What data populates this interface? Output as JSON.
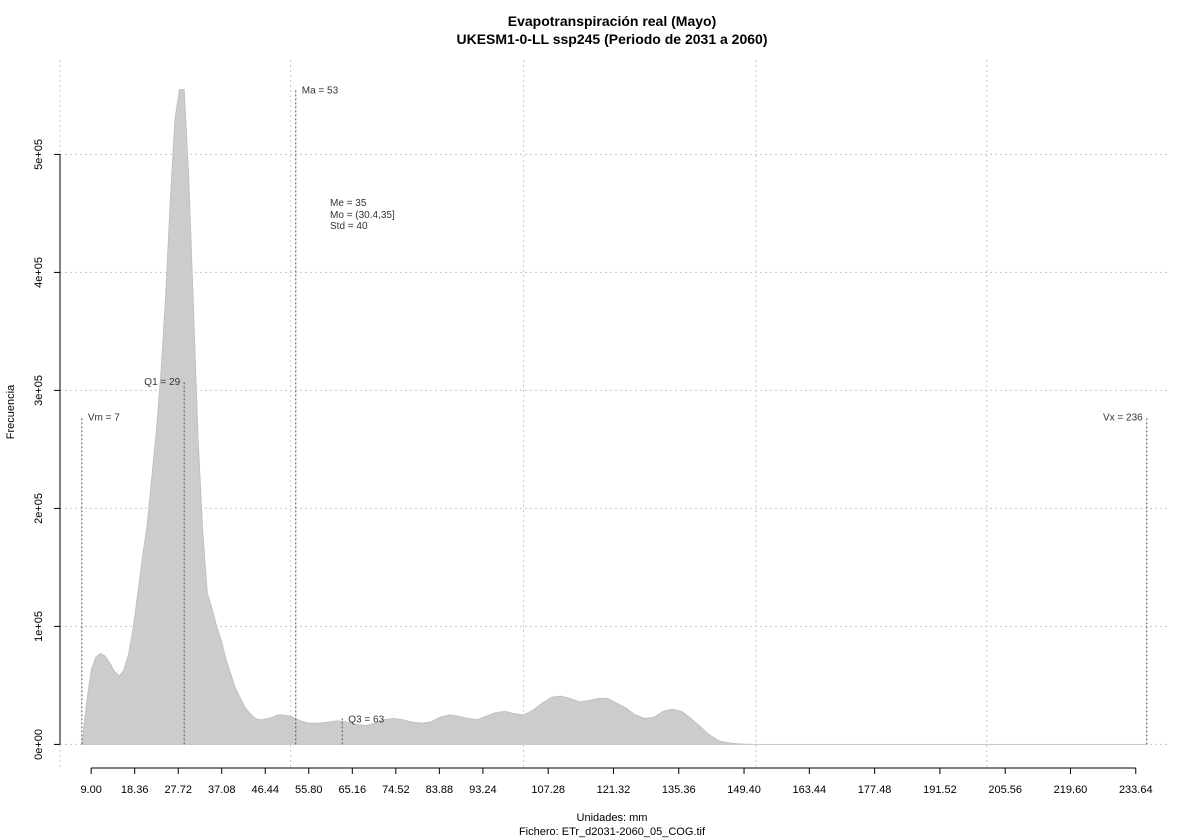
{
  "chart_data": {
    "type": "area",
    "title": "Evapotranspiración real (Mayo)",
    "subtitle": "UKESM1-0-LL ssp245 (Periodo de 2031 a 2060)",
    "xlabel": "Unidades: mm",
    "ylabel": "Frecuencia",
    "caption": "Fichero: ETr_d2031-2060_05_COG.tif",
    "xlim": [
      2.3,
      241
    ],
    "ylim": [
      -20000,
      580000
    ],
    "grid": true,
    "x_ticks": [
      9.0,
      18.36,
      27.72,
      37.08,
      46.44,
      55.8,
      65.16,
      74.52,
      83.88,
      93.24,
      107.28,
      121.32,
      135.36,
      149.4,
      163.44,
      177.48,
      191.52,
      205.56,
      219.6,
      233.64
    ],
    "x_tick_labels": [
      "9.00",
      "18.36",
      "27.72",
      "37.08",
      "46.44",
      "55.80",
      "65.16",
      "74.52",
      "83.88",
      "93.24",
      "107.28",
      "121.32",
      "135.36",
      "149.40",
      "163.44",
      "177.48",
      "191.52",
      "205.56",
      "219.60",
      "233.64"
    ],
    "y_ticks": [
      0,
      100000,
      200000,
      300000,
      400000,
      500000
    ],
    "y_tick_labels": [
      "0e+00",
      "1e+05",
      "2e+05",
      "3e+05",
      "4e+05",
      "5e+05"
    ],
    "grid_x": [
      2.3,
      51.9,
      102.0,
      152.0,
      201.6
    ],
    "series": [
      {
        "x": [
          7,
          8,
          9,
          10,
          11,
          12,
          13,
          14,
          15,
          16,
          17,
          18,
          19,
          20,
          21,
          22,
          23,
          24,
          25,
          26,
          27,
          28,
          29,
          30,
          31,
          32,
          33,
          34,
          35,
          36,
          37,
          38,
          39,
          40,
          41,
          42,
          43,
          44,
          45,
          46,
          47,
          48,
          49,
          50,
          52,
          54,
          56,
          58,
          60,
          62,
          64,
          66,
          68,
          70,
          72,
          74,
          76,
          78,
          80,
          82,
          84,
          86,
          88,
          90,
          92,
          94,
          96,
          98,
          100,
          102,
          104,
          106,
          108,
          110,
          112,
          114,
          116,
          118,
          120,
          122,
          124,
          126,
          128,
          130,
          132,
          134,
          136,
          138,
          140,
          142,
          144,
          146,
          148,
          150,
          152,
          154,
          156,
          158,
          160,
          162,
          164,
          166,
          168,
          170,
          172,
          180,
          200,
          220,
          236
        ],
        "y": [
          0,
          35000,
          63000,
          74000,
          77000,
          75000,
          69000,
          62000,
          58000,
          63000,
          76000,
          98000,
          128000,
          158000,
          185000,
          225000,
          265000,
          315000,
          380000,
          460000,
          530000,
          555000,
          555000,
          480000,
          370000,
          260000,
          180000,
          128000,
          115000,
          100000,
          88000,
          72000,
          60000,
          48000,
          40000,
          32000,
          27000,
          23000,
          21000,
          21000,
          22000,
          23000,
          25000,
          25000,
          24000,
          20000,
          18000,
          18000,
          19000,
          20000,
          19000,
          17000,
          16000,
          18000,
          21000,
          22000,
          21000,
          19000,
          18000,
          19000,
          23000,
          25000,
          24000,
          22000,
          21000,
          24000,
          27000,
          28000,
          26000,
          25000,
          29000,
          35000,
          40000,
          41000,
          39000,
          36000,
          37000,
          39000,
          39000,
          35000,
          31000,
          25000,
          22000,
          23000,
          28000,
          30000,
          28000,
          22000,
          15000,
          8000,
          3000,
          1500,
          500,
          200,
          0,
          0,
          0,
          0,
          0,
          0,
          0,
          0,
          0,
          0,
          0,
          0,
          0,
          0,
          0
        ]
      }
    ],
    "markers": [
      {
        "label": "Vm = 7",
        "x": 7,
        "top": 278000,
        "label_pos": "right"
      },
      {
        "label": "Q1 = 29",
        "x": 29,
        "top": 308000,
        "label_pos": "left"
      },
      {
        "label": "Ma = 53",
        "x": 53,
        "top": 555000,
        "label_pos": "right"
      },
      {
        "label": "Q3 = 63",
        "x": 63,
        "top": 22000,
        "label_pos": "right"
      },
      {
        "label": "Vx = 236",
        "x": 236,
        "top": 278000,
        "label_pos": "left"
      }
    ],
    "stats": [
      "Me = 35",
      "Mo = (30.4,35]",
      "Std = 40"
    ]
  }
}
